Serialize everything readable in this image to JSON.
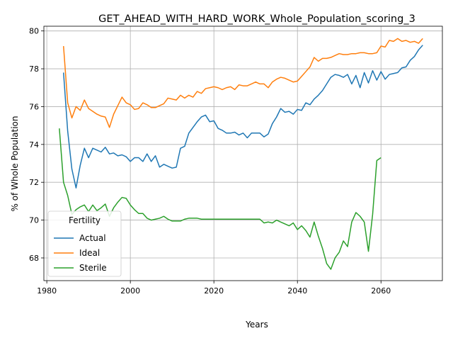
{
  "chart_data": {
    "type": "line",
    "title": "GET_AHEAD_WITH_HARD_WORK_Whole_Population_scoring_3",
    "xlabel": "Years",
    "ylabel": "% of Whole Population",
    "xlim": [
      1979.3,
      2074.7
    ],
    "ylim": [
      66.8,
      80.25
    ],
    "xticks": [
      1980,
      2000,
      2020,
      2040,
      2060
    ],
    "yticks": [
      68,
      70,
      72,
      74,
      76,
      78,
      80
    ],
    "grid": true,
    "legend": {
      "title": "Fertility",
      "placement": "lower-left"
    },
    "series": [
      {
        "name": "Actual",
        "color": "#1f77b4",
        "x": [
          1984,
          1985,
          1986,
          1987,
          1988,
          1989,
          1990,
          1991,
          1992,
          1993,
          1994,
          1995,
          1996,
          1997,
          1998,
          1999,
          2000,
          2001,
          2002,
          2003,
          2004,
          2005,
          2006,
          2007,
          2008,
          2009,
          2010,
          2011,
          2012,
          2013,
          2014,
          2015,
          2016,
          2017,
          2018,
          2019,
          2020,
          2021,
          2022,
          2023,
          2024,
          2025,
          2026,
          2027,
          2028,
          2029,
          2030,
          2031,
          2032,
          2033,
          2034,
          2035,
          2036,
          2037,
          2038,
          2039,
          2040,
          2041,
          2042,
          2043,
          2044,
          2045,
          2046,
          2047,
          2048,
          2049,
          2050,
          2051,
          2052,
          2053,
          2054,
          2055,
          2056,
          2057,
          2058,
          2059,
          2060,
          2061,
          2062,
          2063,
          2064,
          2065,
          2066,
          2067,
          2068,
          2069,
          2070
        ],
        "values": [
          77.8,
          74.7,
          72.7,
          71.7,
          72.9,
          73.8,
          73.3,
          73.8,
          73.7,
          73.6,
          73.85,
          73.5,
          73.55,
          73.4,
          73.45,
          73.35,
          73.1,
          73.3,
          73.3,
          73.1,
          73.5,
          73.1,
          73.4,
          72.8,
          72.95,
          72.85,
          72.75,
          72.8,
          73.8,
          73.9,
          74.6,
          74.9,
          75.2,
          75.45,
          75.55,
          75.2,
          75.25,
          74.85,
          74.75,
          74.6,
          74.6,
          74.65,
          74.5,
          74.6,
          74.35,
          74.6,
          74.6,
          74.6,
          74.4,
          74.55,
          75.1,
          75.45,
          75.9,
          75.7,
          75.75,
          75.6,
          75.85,
          75.8,
          76.2,
          76.1,
          76.4,
          76.6,
          76.85,
          77.2,
          77.55,
          77.7,
          77.65,
          77.55,
          77.7,
          77.2,
          77.65,
          77.0,
          77.8,
          77.25,
          77.9,
          77.4,
          77.85,
          77.45,
          77.7,
          77.75,
          77.8,
          78.05,
          78.1,
          78.45,
          78.65,
          79.0,
          79.25
        ]
      },
      {
        "name": "Ideal",
        "color": "#ff7f0e",
        "x": [
          1984,
          1985,
          1986,
          1987,
          1988,
          1989,
          1990,
          1991,
          1992,
          1993,
          1994,
          1995,
          1996,
          1997,
          1998,
          1999,
          2000,
          2001,
          2002,
          2003,
          2004,
          2005,
          2006,
          2007,
          2008,
          2009,
          2010,
          2011,
          2012,
          2013,
          2014,
          2015,
          2016,
          2017,
          2018,
          2019,
          2020,
          2021,
          2022,
          2023,
          2024,
          2025,
          2026,
          2027,
          2028,
          2029,
          2030,
          2031,
          2032,
          2033,
          2034,
          2035,
          2036,
          2037,
          2038,
          2039,
          2040,
          2041,
          2042,
          2043,
          2044,
          2045,
          2046,
          2047,
          2048,
          2049,
          2050,
          2051,
          2052,
          2053,
          2054,
          2055,
          2056,
          2057,
          2058,
          2059,
          2060,
          2061,
          2062,
          2063,
          2064,
          2065,
          2066,
          2067,
          2068,
          2069,
          2070
        ],
        "values": [
          79.2,
          76.2,
          75.4,
          76.0,
          75.8,
          76.35,
          75.9,
          75.75,
          75.6,
          75.5,
          75.45,
          74.9,
          75.6,
          76.05,
          76.5,
          76.2,
          76.1,
          75.85,
          75.9,
          76.2,
          76.1,
          75.95,
          75.95,
          76.05,
          76.15,
          76.45,
          76.4,
          76.35,
          76.6,
          76.45,
          76.6,
          76.5,
          76.8,
          76.7,
          76.95,
          77.0,
          77.05,
          77.0,
          76.9,
          77.0,
          77.05,
          76.9,
          77.15,
          77.1,
          77.1,
          77.2,
          77.3,
          77.2,
          77.2,
          77.0,
          77.3,
          77.45,
          77.55,
          77.5,
          77.4,
          77.3,
          77.35,
          77.6,
          77.85,
          78.1,
          78.6,
          78.4,
          78.55,
          78.55,
          78.6,
          78.7,
          78.8,
          78.75,
          78.75,
          78.8,
          78.8,
          78.85,
          78.85,
          78.8,
          78.8,
          78.85,
          79.2,
          79.15,
          79.5,
          79.45,
          79.6,
          79.45,
          79.5,
          79.4,
          79.45,
          79.35,
          79.6
        ]
      },
      {
        "name": "Sterile",
        "color": "#2ca02c",
        "x": [
          1983,
          1984,
          1985,
          1986,
          1987,
          1988,
          1989,
          1990,
          1991,
          1992,
          1993,
          1994,
          1995,
          1996,
          1997,
          1998,
          1999,
          2000,
          2001,
          2002,
          2003,
          2004,
          2005,
          2006,
          2007,
          2008,
          2009,
          2010,
          2011,
          2012,
          2013,
          2014,
          2015,
          2016,
          2017,
          2018,
          2019,
          2020,
          2021,
          2022,
          2023,
          2024,
          2025,
          2026,
          2027,
          2028,
          2029,
          2030,
          2031,
          2032,
          2033,
          2034,
          2035,
          2036,
          2037,
          2038,
          2039,
          2040,
          2041,
          2042,
          2043,
          2044,
          2045,
          2046,
          2047,
          2048,
          2049,
          2050,
          2051,
          2052,
          2053,
          2054,
          2055,
          2056,
          2057,
          2058,
          2059,
          2060
        ],
        "values": [
          74.85,
          72.0,
          71.3,
          70.3,
          70.55,
          70.7,
          70.8,
          70.45,
          70.8,
          70.5,
          70.65,
          70.85,
          70.2,
          70.65,
          70.95,
          71.2,
          71.15,
          70.8,
          70.55,
          70.35,
          70.35,
          70.1,
          70.0,
          70.05,
          70.1,
          70.2,
          70.05,
          69.95,
          69.95,
          69.95,
          70.05,
          70.1,
          70.1,
          70.1,
          70.05,
          70.05,
          70.05,
          70.05,
          70.05,
          70.05,
          70.05,
          70.05,
          70.05,
          70.05,
          70.05,
          70.05,
          70.05,
          70.05,
          70.05,
          69.85,
          69.9,
          69.85,
          70.0,
          69.9,
          69.8,
          69.7,
          69.85,
          69.5,
          69.7,
          69.45,
          69.1,
          69.9,
          69.15,
          68.5,
          67.7,
          67.4,
          68.0,
          68.3,
          68.9,
          68.6,
          69.9,
          70.4,
          70.2,
          69.9,
          68.35,
          70.3,
          73.15,
          73.3
        ]
      }
    ]
  }
}
